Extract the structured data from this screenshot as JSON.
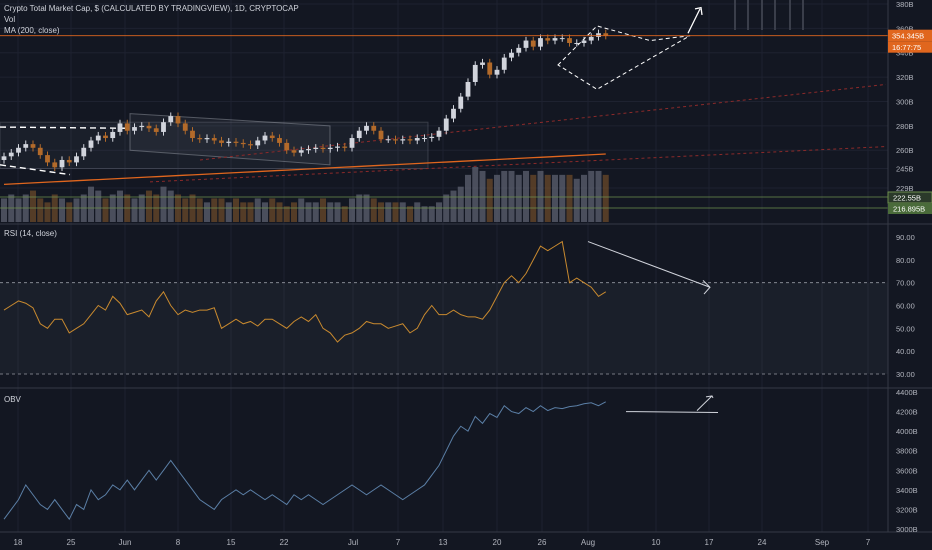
{
  "header": {
    "title": "Crypto Total Market Cap, $ (CALCULATED BY TRADINGVIEW), 1D, CRYPTOCAP",
    "vol_label": "Vol",
    "ma_label": "MA (200, close)"
  },
  "rsi_panel": {
    "title": "RSI (14, close)"
  },
  "obv_panel": {
    "title": "OBV"
  },
  "colors": {
    "background": "#131722",
    "up": "#d1d4dc",
    "down": "#b26a2a",
    "ma": "#e0661e",
    "rsi_line": "#c98a2f",
    "obv_line": "#5b7fa6",
    "price_tag": "#e0661e",
    "green_tag": "#4a6b3a"
  },
  "chart_data": [
    {
      "type": "candlestick",
      "title": "Crypto Total Market Cap, $ (CALCULATED BY TRADINGVIEW), 1D, CRYPTOCAP",
      "y_ticks": [
        "380B",
        "360B",
        "340B",
        "320B",
        "300B",
        "280B",
        "260B",
        "245B",
        "229B"
      ],
      "price_tags": [
        "354.345B",
        "222.55B",
        "216.895B"
      ],
      "countdown_tag": "16:77:75",
      "x_ticks": [
        "18",
        "25",
        "Jun",
        "8",
        "15",
        "22",
        "Jul",
        "7",
        "13",
        "20",
        "26",
        "Aug",
        "10",
        "17",
        "24",
        "Sep",
        "7"
      ],
      "closes": [
        255,
        258,
        262,
        265,
        262,
        256,
        250,
        246,
        252,
        250,
        255,
        262,
        268,
        272,
        270,
        275,
        282,
        276,
        279,
        280,
        278,
        275,
        283,
        288,
        282,
        276,
        270,
        269,
        270,
        268,
        266,
        267,
        266,
        265,
        264,
        268,
        272,
        270,
        266,
        260,
        258,
        260,
        261,
        262,
        261,
        262,
        263,
        262,
        270,
        276,
        280,
        276,
        269,
        269,
        268,
        269,
        268,
        270,
        270,
        271,
        276,
        286,
        294,
        304,
        316,
        330,
        332,
        322,
        326,
        336,
        340,
        344,
        350,
        345,
        352,
        350,
        352,
        352,
        348,
        348,
        350,
        353,
        356,
        354
      ],
      "volume": [
        6,
        7,
        6,
        7,
        8,
        6,
        5,
        7,
        6,
        5,
        6,
        7,
        9,
        8,
        6,
        7,
        8,
        7,
        6,
        7,
        8,
        7,
        9,
        8,
        7,
        6,
        7,
        6,
        5,
        6,
        6,
        5,
        6,
        5,
        5,
        6,
        5,
        6,
        5,
        4,
        5,
        6,
        5,
        5,
        6,
        5,
        5,
        4,
        6,
        7,
        7,
        6,
        5,
        5,
        5,
        5,
        4,
        5,
        4,
        4,
        5,
        7,
        8,
        9,
        12,
        14,
        13,
        11,
        12,
        13,
        13,
        12,
        13,
        12,
        13,
        12,
        12,
        12,
        12,
        11,
        12,
        13,
        13,
        12
      ],
      "ma200": [
        232,
        232.3,
        232.6,
        232.9,
        233.2,
        233.5,
        233.8,
        234.1,
        234.4,
        234.7,
        235,
        235.3,
        235.6,
        235.9,
        236.2,
        236.5,
        236.8,
        237.1,
        237.4,
        237.7,
        238,
        238.3,
        238.6,
        238.9,
        239.2,
        239.5,
        239.8,
        240.1,
        240.4,
        240.7,
        241,
        241.3,
        241.6,
        241.9,
        242.2,
        242.5,
        242.8,
        243.1,
        243.4,
        243.7,
        244,
        244.3,
        244.6,
        244.9,
        245.2,
        245.5,
        245.8,
        246.1,
        246.4,
        246.7,
        247,
        247.3,
        247.6,
        247.9,
        248.2,
        248.5,
        248.8,
        249.1,
        249.4,
        249.7,
        250,
        250.3,
        250.6,
        250.9,
        251.2,
        251.5,
        251.8,
        252.1,
        252.4,
        252.7,
        253,
        253.3,
        253.6,
        253.9,
        254.2,
        254.5,
        254.8,
        255.1,
        255.4,
        255.7,
        256,
        256.3,
        256.6,
        256.9
      ]
    },
    {
      "type": "line",
      "title": "RSI (14, close)",
      "y_ticks": [
        "90.00",
        "80.00",
        "70.00",
        "60.00",
        "50.00",
        "40.00",
        "30.00"
      ],
      "levels": [
        70,
        30
      ],
      "values": [
        58,
        60,
        62,
        61,
        59,
        52,
        50,
        54,
        54,
        48,
        50,
        52,
        56,
        60,
        58,
        64,
        61,
        56,
        57,
        58,
        55,
        62,
        66,
        60,
        56,
        58,
        57,
        58,
        58,
        59,
        50,
        52,
        54,
        52,
        53,
        51,
        54,
        54,
        52,
        50,
        53,
        55,
        53,
        56,
        50,
        48,
        44,
        47,
        48,
        50,
        53,
        52,
        52,
        50,
        51,
        52,
        48,
        50,
        56,
        60,
        56,
        56,
        58,
        56,
        55,
        55,
        54,
        58,
        64,
        70,
        73,
        70,
        74,
        80,
        86,
        84,
        86,
        88,
        70,
        72,
        70,
        68,
        64,
        66
      ]
    },
    {
      "type": "line",
      "title": "OBV",
      "y_ticks": [
        "4400B",
        "4200B",
        "4000B",
        "3800B",
        "3600B",
        "3400B",
        "3200B",
        "3000B"
      ],
      "values": [
        3100,
        3200,
        3300,
        3450,
        3350,
        3250,
        3200,
        3300,
        3200,
        3100,
        3250,
        3200,
        3400,
        3300,
        3350,
        3450,
        3400,
        3500,
        3400,
        3500,
        3600,
        3500,
        3600,
        3700,
        3600,
        3500,
        3400,
        3300,
        3250,
        3200,
        3300,
        3350,
        3400,
        3350,
        3400,
        3350,
        3300,
        3350,
        3300,
        3250,
        3350,
        3300,
        3350,
        3300,
        3250,
        3300,
        3350,
        3400,
        3450,
        3400,
        3350,
        3400,
        3450,
        3400,
        3350,
        3300,
        3350,
        3400,
        3450,
        3550,
        3650,
        3800,
        3950,
        4050,
        4000,
        4150,
        4080,
        4180,
        4140,
        4260,
        4200,
        4180,
        4240,
        4200,
        4260,
        4210,
        4240,
        4230,
        4250,
        4260,
        4280,
        4290,
        4260,
        4300
      ]
    }
  ]
}
